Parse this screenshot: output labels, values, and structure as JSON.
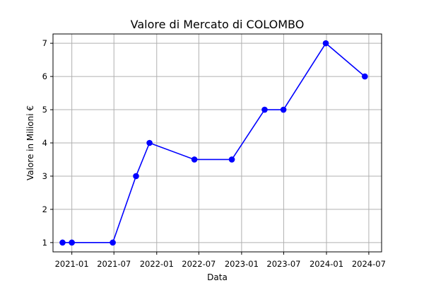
{
  "chart_data": {
    "type": "line",
    "title": "Valore di Mercato di COLOMBO",
    "xlabel": "Data",
    "ylabel": "Valore in Milioni €",
    "x_type": "date",
    "xlim": [
      "2020-10-12",
      "2024-08-25"
    ],
    "ylim": [
      0.72,
      7.28
    ],
    "x_ticks": [
      "2021-01-01",
      "2021-07-01",
      "2022-01-01",
      "2022-07-01",
      "2023-01-01",
      "2023-07-01",
      "2024-01-01",
      "2024-07-01"
    ],
    "x_tick_labels": [
      "2021-01",
      "2021-07",
      "2022-01",
      "2022-07",
      "2023-01",
      "2023-07",
      "2024-01",
      "2024-07"
    ],
    "y_ticks": [
      1,
      2,
      3,
      4,
      5,
      6,
      7
    ],
    "y_tick_labels": [
      "1",
      "2",
      "3",
      "4",
      "5",
      "6",
      "7"
    ],
    "grid": true,
    "series": [
      {
        "color": "#0000ff",
        "marker": "circle",
        "points": [
          {
            "x": "2020-11-22",
            "y": 1
          },
          {
            "x": "2021-01-01",
            "y": 1
          },
          {
            "x": "2021-06-26",
            "y": 1
          },
          {
            "x": "2021-10-04",
            "y": 3
          },
          {
            "x": "2021-12-01",
            "y": 4
          },
          {
            "x": "2022-06-12",
            "y": 3.5
          },
          {
            "x": "2022-11-20",
            "y": 3.5
          },
          {
            "x": "2023-04-10",
            "y": 5
          },
          {
            "x": "2023-06-30",
            "y": 5
          },
          {
            "x": "2023-12-29",
            "y": 7
          },
          {
            "x": "2024-06-14",
            "y": 6
          }
        ]
      }
    ]
  }
}
